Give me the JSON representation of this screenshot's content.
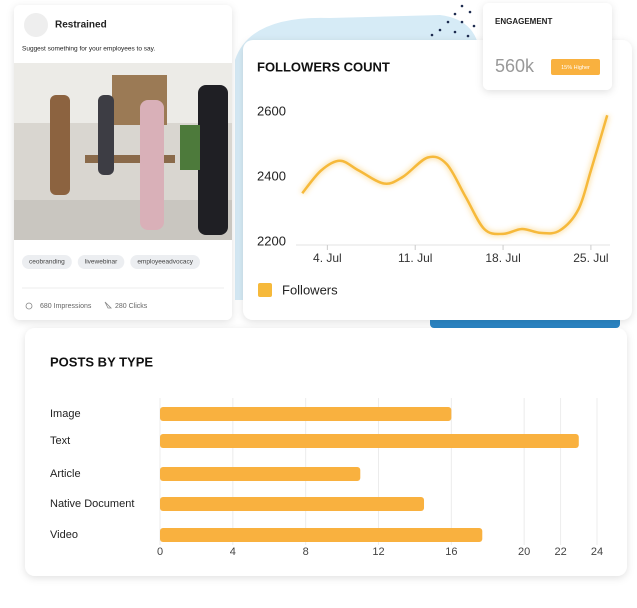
{
  "post": {
    "author": "Restrained",
    "text": "Suggest something for your employees to say.",
    "tags": [
      "ceobranding",
      "livewebinar",
      "employeeadvocacy"
    ],
    "impressions": "680 Impressions",
    "clicks": "280 Clicks"
  },
  "engagement": {
    "title": "ENGAGEMENT",
    "value": "560k",
    "badge": "15% Higher"
  },
  "chart_data": [
    {
      "type": "line",
      "title": "FOLLOWERS COUNT",
      "x": [
        2,
        3.5,
        5,
        6.5,
        8.5,
        10,
        12,
        13.5,
        15,
        16.5,
        18,
        19.5,
        21,
        22.5,
        24,
        25,
        26.3
      ],
      "series": [
        {
          "name": "Followers",
          "color": "#f6b93b",
          "values": [
            2350,
            2420,
            2450,
            2420,
            2380,
            2400,
            2460,
            2440,
            2340,
            2240,
            2225,
            2240,
            2228,
            2235,
            2300,
            2420,
            2590
          ]
        }
      ],
      "xlim": [
        1.5,
        27
      ],
      "xticks": [
        {
          "value": 4,
          "label": "4. Jul"
        },
        {
          "value": 11,
          "label": "11. Jul"
        },
        {
          "value": 18,
          "label": "18. Jul"
        },
        {
          "value": 25,
          "label": "25. Jul"
        }
      ],
      "ylim": [
        2190,
        2610
      ],
      "yticks": [
        2200,
        2400,
        2600
      ]
    },
    {
      "type": "hbar",
      "title": "POSTS BY TYPE",
      "categories": [
        "Image",
        "Text",
        "Article",
        "Native Document",
        "Video"
      ],
      "values": [
        16,
        23,
        11,
        14.5,
        17.7
      ],
      "color": "#f9b13f",
      "xlim": [
        0,
        24
      ],
      "xticks": [
        0,
        4,
        8,
        12,
        16,
        20,
        22,
        24
      ],
      "grid": true
    }
  ]
}
